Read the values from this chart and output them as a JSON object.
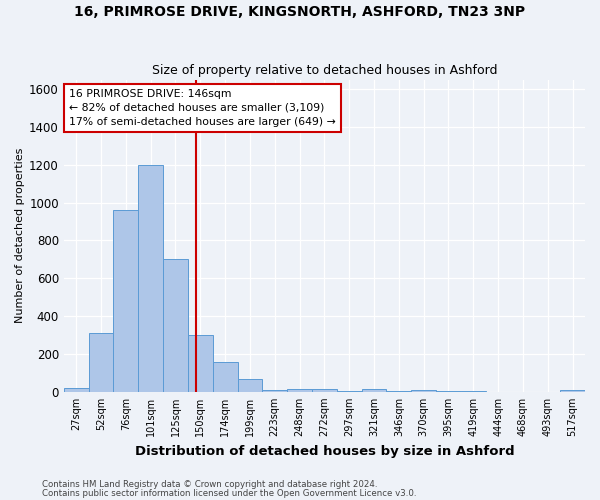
{
  "title1": "16, PRIMROSE DRIVE, KINGSNORTH, ASHFORD, TN23 3NP",
  "title2": "Size of property relative to detached houses in Ashford",
  "xlabel": "Distribution of detached houses by size in Ashford",
  "ylabel": "Number of detached properties",
  "footer1": "Contains HM Land Registry data © Crown copyright and database right 2024.",
  "footer2": "Contains public sector information licensed under the Open Government Licence v3.0.",
  "categories": [
    "27sqm",
    "52sqm",
    "76sqm",
    "101sqm",
    "125sqm",
    "150sqm",
    "174sqm",
    "199sqm",
    "223sqm",
    "248sqm",
    "272sqm",
    "297sqm",
    "321sqm",
    "346sqm",
    "370sqm",
    "395sqm",
    "419sqm",
    "444sqm",
    "468sqm",
    "493sqm",
    "517sqm"
  ],
  "values": [
    20,
    310,
    960,
    1200,
    700,
    300,
    160,
    70,
    10,
    15,
    15,
    5,
    15,
    5,
    10,
    5,
    5,
    0,
    0,
    0,
    10
  ],
  "bar_color": "#aec6e8",
  "bar_edge_color": "#5b9bd5",
  "vline_x": 4.82,
  "vline_color": "#cc0000",
  "ylim": [
    0,
    1650
  ],
  "annotation_text": "16 PRIMROSE DRIVE: 146sqm\n← 82% of detached houses are smaller (3,109)\n17% of semi-detached houses are larger (649) →",
  "annotation_box_color": "white",
  "annotation_box_edge": "#cc0000",
  "bg_color": "#eef2f8",
  "yticks": [
    0,
    200,
    400,
    600,
    800,
    1000,
    1200,
    1400,
    1600
  ]
}
